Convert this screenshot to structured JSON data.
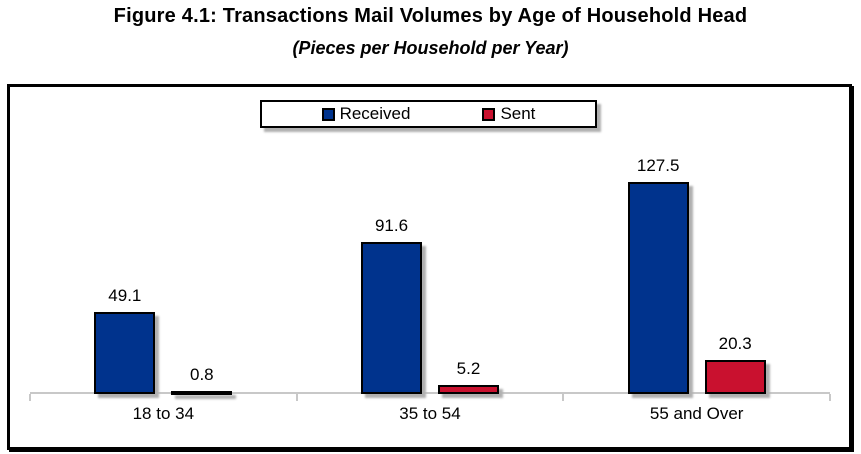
{
  "figure": {
    "title": "Figure 4.1: Transactions Mail Volumes by Age of Household Head",
    "subtitle": "(Pieces per Household per Year)"
  },
  "chart_data": {
    "type": "bar",
    "title": "Figure 4.1: Transactions Mail Volumes by Age of Household Head",
    "subtitle": "(Pieces per Household per Year)",
    "categories": [
      "18 to 34",
      "35 to 54",
      "55 and Over"
    ],
    "series": [
      {
        "name": "Received",
        "color": "#00338d",
        "values": [
          49.1,
          91.6,
          127.5
        ]
      },
      {
        "name": "Sent",
        "color": "#c9112f",
        "values": [
          0.8,
          5.2,
          20.3
        ]
      }
    ],
    "value_labels": true,
    "legend_position": "top-center",
    "legend_entries": [
      "Received",
      "Sent"
    ],
    "xlabel": "",
    "ylabel": "",
    "ylim": [
      0,
      180
    ],
    "grid": false,
    "y_axis_shown": false,
    "axis_color": "#c8c8c8"
  }
}
